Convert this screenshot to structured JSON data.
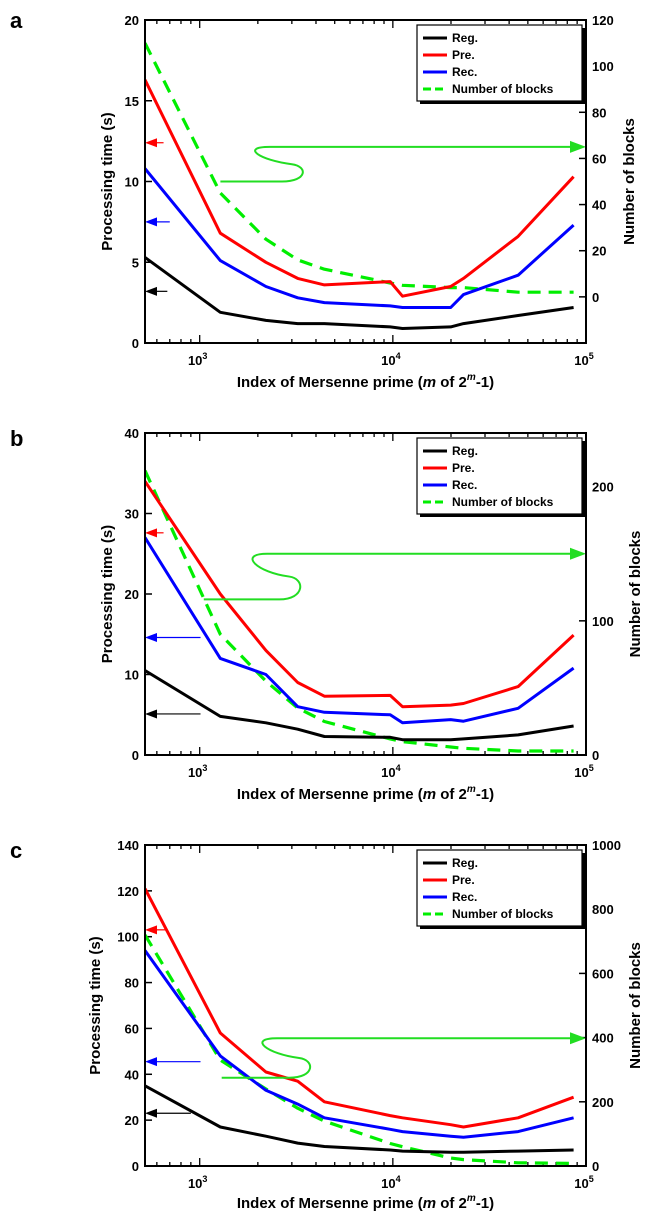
{
  "chart_data": [
    {
      "panel": "a",
      "type": "line",
      "xlabel_parts": [
        "Index of Mersenne prime (",
        "m",
        " of 2",
        "m",
        "-1)"
      ],
      "ylabel": "Processing time (s)",
      "ylabel_right": "Number of blocks",
      "xscale": "log",
      "xlim": [
        521,
        100000
      ],
      "ylim": [
        0,
        20
      ],
      "ylim_right": [
        -20,
        120
      ],
      "yticks": [
        "0",
        "5",
        "10",
        "15",
        "20"
      ],
      "yticks_right": [
        "0",
        "20",
        "40",
        "60",
        "80",
        "100",
        "120"
      ],
      "xticks": [
        {
          "base": "10",
          "exp": "3",
          "value": 1000
        },
        {
          "base": "10",
          "exp": "4",
          "value": 10000
        },
        {
          "base": "10",
          "exp": "5",
          "value": 100000
        }
      ],
      "legend": {
        "position": "top-right",
        "entries": [
          "Reg.",
          "Pre.",
          "Rec.",
          "Number of blocks"
        ]
      },
      "series": [
        {
          "name": "Reg.",
          "color": "#000000",
          "axis": "left",
          "x": [
            521,
            1279,
            2203,
            3217,
            4423,
            9689,
            11213,
            19937,
            23209,
            44497,
            86243
          ],
          "y": [
            5.3,
            1.9,
            1.4,
            1.2,
            1.2,
            1.0,
            0.9,
            1.0,
            1.2,
            1.7,
            2.2
          ]
        },
        {
          "name": "Pre.",
          "color": "#ff0000",
          "axis": "left",
          "x": [
            521,
            1279,
            2203,
            3217,
            4423,
            9689,
            11213,
            19937,
            23209,
            44497,
            86243
          ],
          "y": [
            16.3,
            6.8,
            5.0,
            4.0,
            3.6,
            3.8,
            2.9,
            3.5,
            4.0,
            6.6,
            10.3
          ]
        },
        {
          "name": "Rec.",
          "color": "#0000ff",
          "axis": "left",
          "x": [
            521,
            1279,
            2203,
            3217,
            4423,
            9689,
            11213,
            19937,
            23209,
            44497,
            86243
          ],
          "y": [
            10.8,
            5.1,
            3.5,
            2.8,
            2.5,
            2.3,
            2.2,
            2.2,
            3.0,
            4.2,
            7.3
          ]
        },
        {
          "name": "Number of blocks",
          "color": "#00ee00",
          "axis": "right",
          "dashed": true,
          "x": [
            521,
            1279,
            2203,
            3217,
            4423,
            9689,
            11213,
            19937,
            23209,
            44497,
            86243
          ],
          "y": [
            110,
            45,
            25,
            16,
            12,
            6,
            5,
            4,
            4,
            2,
            2
          ]
        }
      ],
      "annotations": [
        {
          "type": "arrow-left",
          "color": "#ff0000",
          "y_axis": "left",
          "y": 12.4,
          "x_from": 650,
          "x_to": 521
        },
        {
          "type": "arrow-left",
          "color": "#0000ff",
          "y_axis": "left",
          "y": 7.5,
          "x_from": 700,
          "x_to": 521
        },
        {
          "type": "arrow-left",
          "color": "#000000",
          "y_axis": "left",
          "y": 3.2,
          "x_from": 680,
          "x_to": 521
        },
        {
          "type": "curve-arrow-right",
          "color": "#22dd22",
          "y_axis": "right",
          "y_start": 50,
          "y_end": 65,
          "x_start": 1280,
          "x_bulge": 3300,
          "x_end": 100000
        }
      ]
    },
    {
      "panel": "b",
      "type": "line",
      "xlabel_parts": [
        "Index of Mersenne prime (",
        "m",
        " of 2",
        "m",
        "-1)"
      ],
      "ylabel": "Processing time (s)",
      "ylabel_right": "Number of blocks",
      "xscale": "log",
      "xlim": [
        521,
        100000
      ],
      "ylim": [
        0,
        40
      ],
      "ylim_right": [
        0,
        240
      ],
      "yticks": [
        "0",
        "10",
        "20",
        "30",
        "40"
      ],
      "yticks_right": [
        "0",
        "100",
        "200"
      ],
      "xticks": [
        {
          "base": "10",
          "exp": "3",
          "value": 1000
        },
        {
          "base": "10",
          "exp": "4",
          "value": 10000
        },
        {
          "base": "10",
          "exp": "5",
          "value": 100000
        }
      ],
      "legend": {
        "position": "top-right",
        "entries": [
          "Reg.",
          "Pre.",
          "Rec.",
          "Number of blocks"
        ]
      },
      "series": [
        {
          "name": "Reg.",
          "color": "#000000",
          "axis": "left",
          "x": [
            521,
            1279,
            2203,
            3217,
            4423,
            9689,
            11213,
            19937,
            23209,
            44497,
            86243
          ],
          "y": [
            10.5,
            4.8,
            4.0,
            3.2,
            2.3,
            2.2,
            1.9,
            1.9,
            2.0,
            2.5,
            3.6
          ]
        },
        {
          "name": "Pre.",
          "color": "#ff0000",
          "axis": "left",
          "x": [
            521,
            1279,
            2203,
            3217,
            4423,
            9689,
            11213,
            19937,
            23209,
            44497,
            86243
          ],
          "y": [
            34.0,
            20.0,
            13.0,
            9.0,
            7.3,
            7.4,
            6.0,
            6.2,
            6.4,
            8.5,
            14.9
          ]
        },
        {
          "name": "Rec.",
          "color": "#0000ff",
          "axis": "left",
          "x": [
            521,
            1279,
            2203,
            3217,
            4423,
            9689,
            11213,
            19937,
            23209,
            44497,
            86243
          ],
          "y": [
            27.0,
            12.0,
            10.0,
            6.0,
            5.3,
            5.0,
            4.0,
            4.4,
            4.2,
            5.8,
            10.8
          ]
        },
        {
          "name": "Number of blocks",
          "color": "#00ee00",
          "axis": "right",
          "dashed": true,
          "x": [
            521,
            1279,
            2203,
            3217,
            4423,
            9689,
            11213,
            19937,
            23209,
            44497,
            86243
          ],
          "y": [
            212,
            90,
            55,
            35,
            25,
            12,
            10,
            6,
            5,
            3,
            3
          ]
        }
      ],
      "annotations": [
        {
          "type": "arrow-left",
          "color": "#ff0000",
          "y_axis": "left",
          "y": 27.6,
          "x_from": 650,
          "x_to": 521
        },
        {
          "type": "arrow-left",
          "color": "#0000ff",
          "y_axis": "left",
          "y": 14.6,
          "x_from": 1010,
          "x_to": 521
        },
        {
          "type": "arrow-left",
          "color": "#000000",
          "y_axis": "left",
          "y": 5.1,
          "x_from": 1010,
          "x_to": 521
        },
        {
          "type": "curve-arrow-right",
          "color": "#22dd22",
          "y_axis": "right",
          "y_start": 116,
          "y_end": 150,
          "x_start": 1050,
          "x_bulge": 3200,
          "x_end": 100000
        }
      ]
    },
    {
      "panel": "c",
      "type": "line",
      "xlabel_parts": [
        "Index of Mersenne prime (",
        "m",
        " of 2",
        "m",
        "-1)"
      ],
      "ylabel": "Processing time (s)",
      "ylabel_right": "Number of blocks",
      "xscale": "log",
      "xlim": [
        521,
        100000
      ],
      "ylim": [
        0,
        140
      ],
      "ylim_right": [
        0,
        1000
      ],
      "yticks": [
        "0",
        "20",
        "40",
        "60",
        "80",
        "100",
        "120",
        "140"
      ],
      "yticks_right": [
        "0",
        "200",
        "400",
        "600",
        "800",
        "1000"
      ],
      "xticks": [
        {
          "base": "10",
          "exp": "3",
          "value": 1000
        },
        {
          "base": "10",
          "exp": "4",
          "value": 10000
        },
        {
          "base": "10",
          "exp": "5",
          "value": 100000
        }
      ],
      "legend": {
        "position": "top-right",
        "entries": [
          "Reg.",
          "Pre.",
          "Rec.",
          "Number of blocks"
        ]
      },
      "series": [
        {
          "name": "Reg.",
          "color": "#000000",
          "axis": "left",
          "x": [
            521,
            1279,
            2203,
            3217,
            4423,
            9689,
            11213,
            19937,
            23209,
            44497,
            86243
          ],
          "y": [
            35,
            17,
            13,
            10,
            8.5,
            7,
            6.5,
            6,
            6,
            6.5,
            7
          ]
        },
        {
          "name": "Pre.",
          "color": "#ff0000",
          "axis": "left",
          "x": [
            521,
            1279,
            2203,
            3217,
            4423,
            9689,
            11213,
            19937,
            23209,
            44497,
            86243
          ],
          "y": [
            121,
            58,
            41,
            37,
            28,
            22,
            21,
            18,
            17,
            21,
            30
          ]
        },
        {
          "name": "Rec.",
          "color": "#0000ff",
          "axis": "left",
          "x": [
            521,
            1279,
            2203,
            3217,
            4423,
            9689,
            11213,
            19937,
            23209,
            44497,
            86243
          ],
          "y": [
            94,
            48,
            33,
            27,
            21,
            16,
            15,
            13,
            12.5,
            15,
            21
          ]
        },
        {
          "name": "Number of blocks",
          "color": "#00ee00",
          "axis": "right",
          "dashed": true,
          "x": [
            521,
            1279,
            2203,
            3217,
            4423,
            9689,
            11213,
            19937,
            23209,
            44497,
            86243
          ],
          "y": [
            720,
            330,
            240,
            180,
            140,
            70,
            60,
            25,
            20,
            10,
            8
          ]
        }
      ],
      "annotations": [
        {
          "type": "arrow-left",
          "color": "#ff0000",
          "y_axis": "left",
          "y": 103,
          "x_from": 680,
          "x_to": 521
        },
        {
          "type": "arrow-left",
          "color": "#0000ff",
          "y_axis": "left",
          "y": 45.5,
          "x_from": 1010,
          "x_to": 521
        },
        {
          "type": "arrow-left",
          "color": "#000000",
          "y_axis": "left",
          "y": 23,
          "x_from": 900,
          "x_to": 521
        },
        {
          "type": "curve-arrow-right",
          "color": "#22dd22",
          "y_axis": "right",
          "y_start": 275,
          "y_end": 398,
          "x_start": 1300,
          "x_bulge": 3600,
          "x_end": 100000
        }
      ]
    }
  ]
}
